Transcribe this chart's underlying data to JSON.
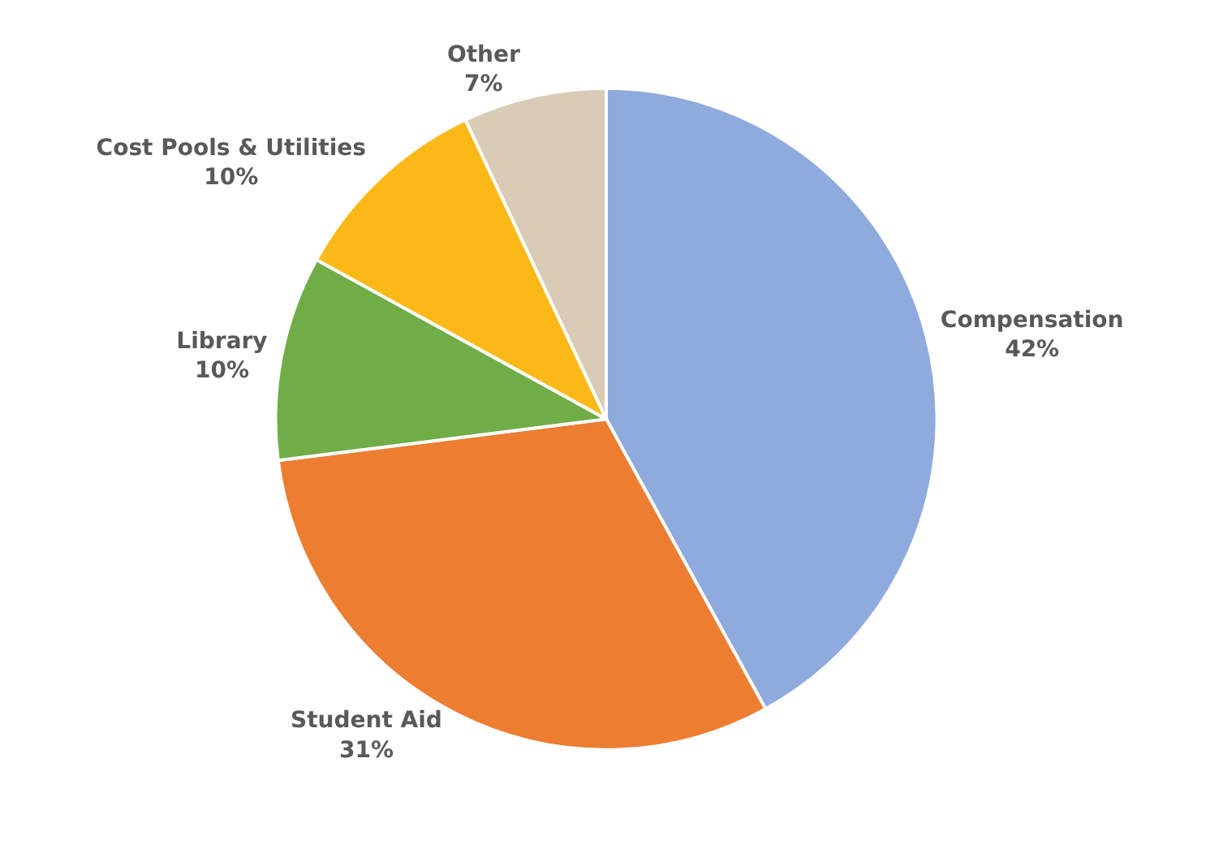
{
  "chart_data": {
    "type": "pie",
    "categories": [
      "Compensation",
      "Student Aid",
      "Library",
      "Cost Pools & Utilities",
      "Other"
    ],
    "values": [
      42,
      31,
      10,
      10,
      7
    ],
    "value_labels": [
      "42%",
      "31%",
      "10%",
      "10%",
      "7%"
    ],
    "colors": [
      "#8faadc",
      "#ed7d31",
      "#70ad47",
      "#fbb918",
      "#d9cbb5"
    ],
    "legend": false
  }
}
